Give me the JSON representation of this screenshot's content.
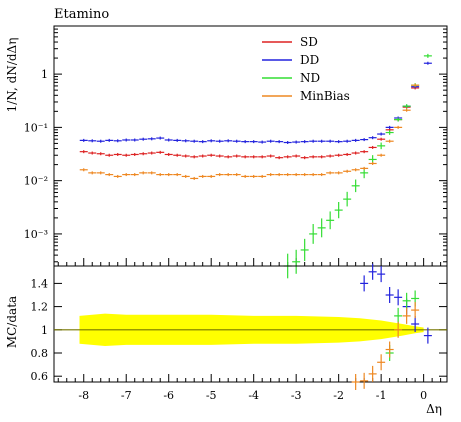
{
  "chart_data": [
    {
      "type": "line",
      "title": "Etamino",
      "ylabel": "1/N, dN/dΔη",
      "yscale": "log",
      "ylim": [
        0.00025,
        8
      ],
      "xlim": [
        -8.7,
        0.55
      ],
      "yticks": [
        {
          "v": 0.001,
          "l": "10⁻³"
        },
        {
          "v": 0.01,
          "l": "10⁻²"
        },
        {
          "v": 0.1,
          "l": "10⁻¹"
        },
        {
          "v": 1,
          "l": "1"
        }
      ],
      "legend_position": "top-right",
      "series": [
        {
          "name": "SD",
          "color": "#dd2222",
          "x": [
            -8,
            -7.8,
            -7.6,
            -7.4,
            -7.2,
            -7,
            -6.8,
            -6.6,
            -6.4,
            -6.2,
            -6,
            -5.8,
            -5.6,
            -5.4,
            -5.2,
            -5,
            -4.8,
            -4.6,
            -4.4,
            -4.2,
            -4,
            -3.8,
            -3.6,
            -3.4,
            -3.2,
            -3,
            -2.8,
            -2.6,
            -2.4,
            -2.2,
            -2,
            -1.8,
            -1.6,
            -1.4,
            -1.2,
            -1,
            -0.8,
            -0.6,
            -0.4,
            -0.2
          ],
          "y": [
            0.035,
            0.033,
            0.032,
            0.03,
            0.031,
            0.03,
            0.031,
            0.032,
            0.033,
            0.034,
            0.031,
            0.03,
            0.029,
            0.028,
            0.029,
            0.03,
            0.029,
            0.028,
            0.029,
            0.028,
            0.028,
            0.028,
            0.029,
            0.027,
            0.028,
            0.029,
            0.027,
            0.028,
            0.028,
            0.029,
            0.03,
            0.031,
            0.033,
            0.035,
            0.042,
            0.06,
            0.09,
            0.14,
            0.24,
            0.55
          ]
        },
        {
          "name": "DD",
          "color": "#2222dd",
          "x": [
            -8,
            -7.8,
            -7.6,
            -7.4,
            -7.2,
            -7,
            -6.8,
            -6.6,
            -6.4,
            -6.2,
            -6,
            -5.8,
            -5.6,
            -5.4,
            -5.2,
            -5,
            -4.8,
            -4.6,
            -4.4,
            -4.2,
            -4,
            -3.8,
            -3.6,
            -3.4,
            -3.2,
            -3,
            -2.8,
            -2.6,
            -2.4,
            -2.2,
            -2,
            -1.8,
            -1.6,
            -1.4,
            -1.2,
            -1,
            -0.8,
            -0.6,
            -0.4,
            -0.2,
            0.1
          ],
          "y": [
            0.057,
            0.056,
            0.055,
            0.057,
            0.056,
            0.058,
            0.058,
            0.06,
            0.061,
            0.063,
            0.058,
            0.057,
            0.056,
            0.055,
            0.054,
            0.056,
            0.055,
            0.056,
            0.055,
            0.054,
            0.054,
            0.053,
            0.055,
            0.054,
            0.052,
            0.053,
            0.054,
            0.055,
            0.055,
            0.055,
            0.054,
            0.055,
            0.057,
            0.059,
            0.064,
            0.075,
            0.1,
            0.15,
            0.25,
            0.58,
            1.6
          ]
        },
        {
          "name": "ND",
          "color": "#33dd33",
          "x": [
            -3.2,
            -3,
            -2.8,
            -2.6,
            -2.4,
            -2.2,
            -2,
            -1.8,
            -1.6,
            -1.4,
            -1.2,
            -1,
            -0.8,
            -0.6,
            -0.4,
            -0.2,
            0.1
          ],
          "y": [
            0.00025,
            0.0003,
            0.0005,
            0.001,
            0.0013,
            0.0018,
            0.0028,
            0.0045,
            0.008,
            0.014,
            0.025,
            0.045,
            0.08,
            0.14,
            0.25,
            0.62,
            2.2
          ]
        },
        {
          "name": "MinBias",
          "color": "#ee8822",
          "x": [
            -8,
            -7.8,
            -7.6,
            -7.4,
            -7.2,
            -7,
            -6.8,
            -6.6,
            -6.4,
            -6.2,
            -6,
            -5.8,
            -5.6,
            -5.4,
            -5.2,
            -5,
            -4.8,
            -4.6,
            -4.4,
            -4.2,
            -4,
            -3.8,
            -3.6,
            -3.4,
            -3.2,
            -3,
            -2.8,
            -2.6,
            -2.4,
            -2.2,
            -2,
            -1.8,
            -1.6,
            -1.4,
            -1.2,
            -1,
            -0.8,
            -0.6,
            -0.4,
            -0.2
          ],
          "y": [
            0.016,
            0.014,
            0.014,
            0.013,
            0.012,
            0.013,
            0.013,
            0.014,
            0.014,
            0.013,
            0.013,
            0.013,
            0.012,
            0.011,
            0.012,
            0.012,
            0.013,
            0.013,
            0.013,
            0.012,
            0.012,
            0.012,
            0.013,
            0.013,
            0.013,
            0.013,
            0.013,
            0.013,
            0.013,
            0.014,
            0.014,
            0.015,
            0.016,
            0.017,
            0.021,
            0.03,
            0.055,
            0.1,
            0.21,
            0.62
          ]
        }
      ]
    },
    {
      "type": "line",
      "ylabel": "MC/data",
      "xlabel": "Δη",
      "ylim": [
        0.55,
        1.55
      ],
      "xlim": [
        -8.7,
        0.55
      ],
      "yticks": [
        {
          "v": 0.6,
          "l": "0.6"
        },
        {
          "v": 0.8,
          "l": "0.8"
        },
        {
          "v": 1,
          "l": "1"
        },
        {
          "v": 1.2,
          "l": "1.2"
        },
        {
          "v": 1.4,
          "l": "1.4"
        }
      ],
      "xticks": [
        {
          "v": -8,
          "l": "-8"
        },
        {
          "v": -7,
          "l": "-7"
        },
        {
          "v": -6,
          "l": "-6"
        },
        {
          "v": -5,
          "l": "-5"
        },
        {
          "v": -4,
          "l": "-4"
        },
        {
          "v": -3,
          "l": "-3"
        },
        {
          "v": -2,
          "l": "-2"
        },
        {
          "v": -1,
          "l": "-1"
        },
        {
          "v": 0,
          "l": "0"
        }
      ],
      "band": {
        "color": "#ffff00",
        "x": [
          -8.1,
          -7.5,
          -7,
          -6,
          -5,
          -4,
          -3,
          -2,
          -1.5,
          -1,
          -0.5,
          -0.2,
          0
        ],
        "half_width": [
          0.12,
          0.14,
          0.13,
          0.13,
          0.13,
          0.12,
          0.12,
          0.11,
          0.1,
          0.08,
          0.05,
          0.03,
          0.02
        ]
      },
      "reference_line": 1,
      "series": [
        {
          "name": "DD",
          "color": "#2222dd",
          "x": [
            -1.4,
            -1.2,
            -1,
            -0.8,
            -0.6,
            -0.4,
            -0.2,
            0.1
          ],
          "y": [
            1.4,
            1.5,
            1.48,
            1.3,
            1.28,
            1.2,
            1.05,
            0.95
          ]
        },
        {
          "name": "ND",
          "color": "#33dd33",
          "x": [
            -0.8,
            -0.6,
            -0.4,
            -0.2
          ],
          "y": [
            0.8,
            1.12,
            1.25,
            1.27
          ]
        },
        {
          "name": "MinBias",
          "color": "#ee8822",
          "x": [
            -1.6,
            -1.4,
            -1.2,
            -1,
            -0.8,
            -0.6,
            -0.4,
            -0.2
          ],
          "y": [
            0.55,
            0.56,
            0.62,
            0.72,
            0.83,
            1.0,
            1.12,
            1.17
          ]
        }
      ]
    }
  ]
}
